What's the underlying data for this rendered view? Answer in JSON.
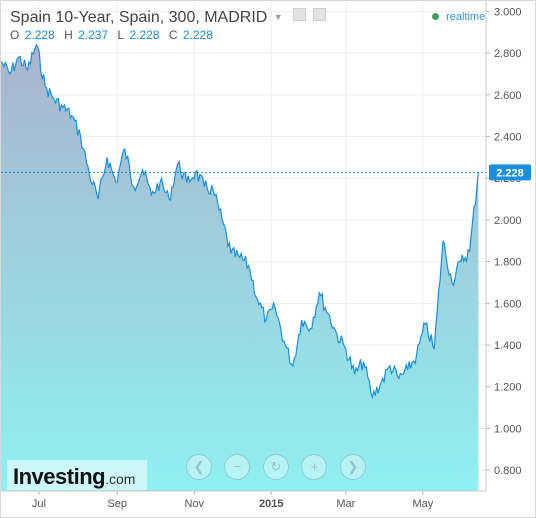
{
  "header": {
    "title": "Spain 10-Year, Spain, 300, MADRID",
    "realtime_label": "realtime"
  },
  "ohlc": {
    "open_label": "O",
    "open": "2.228",
    "high_label": "H",
    "high": "2.237",
    "low_label": "L",
    "low": "2.228",
    "close_label": "C",
    "close": "2.228"
  },
  "logo": {
    "name": "Investing",
    "suffix": ".com"
  },
  "nav": {
    "back_icon": "chevron-left-icon",
    "zoom_out_icon": "minus-icon",
    "reset_icon": "refresh-icon",
    "zoom_in_icon": "plus-icon",
    "forward_icon": "chevron-right-icon"
  },
  "colors": {
    "line": "#1a8fe0",
    "area_top": "#aab4cc",
    "area_bottom": "#8ff0f2",
    "price_tag": "#1a8fe0"
  },
  "chart_data": {
    "type": "area",
    "title": "Spain 10-Year",
    "xlabel": "",
    "ylabel": "",
    "ylim": [
      0.7,
      3.05
    ],
    "yticks": [
      3.0,
      2.8,
      2.6,
      2.4,
      2.2,
      2.0,
      1.8,
      1.6,
      1.4,
      1.2,
      1.0,
      0.8
    ],
    "ytick_labels": [
      "3.000",
      "2.800",
      "2.600",
      "2.400",
      "2.200",
      "2.000",
      "1.800",
      "1.600",
      "1.400",
      "1.200",
      "1.000",
      "0.800"
    ],
    "xlim": [
      "2014-06-01",
      "2015-06-20"
    ],
    "xticks": [
      "2014-07-01",
      "2014-09-01",
      "2014-11-01",
      "2015-01-01",
      "2015-03-01",
      "2015-05-01"
    ],
    "xtick_labels": [
      "Jul",
      "Sep",
      "Nov",
      "2015",
      "Mar",
      "May"
    ],
    "grid": true,
    "last_value": 2.228,
    "last_value_label": "2.228",
    "series": [
      {
        "x": [
          "2014-06-01",
          "2014-06-08",
          "2014-06-15",
          "2014-06-22",
          "2014-06-29",
          "2014-07-06",
          "2014-07-13",
          "2014-07-20",
          "2014-07-27",
          "2014-08-03",
          "2014-08-10",
          "2014-08-17",
          "2014-08-24",
          "2014-08-31",
          "2014-09-07",
          "2014-09-14",
          "2014-09-21",
          "2014-09-28",
          "2014-10-05",
          "2014-10-12",
          "2014-10-19",
          "2014-10-26",
          "2014-11-02",
          "2014-11-09",
          "2014-11-16",
          "2014-11-23",
          "2014-11-30",
          "2014-12-07",
          "2014-12-14",
          "2014-12-21",
          "2014-12-28",
          "2015-01-04",
          "2015-01-11",
          "2015-01-18",
          "2015-01-25",
          "2015-02-01",
          "2015-02-08",
          "2015-02-15",
          "2015-02-22",
          "2015-03-01",
          "2015-03-08",
          "2015-03-15",
          "2015-03-22",
          "2015-03-29",
          "2015-04-05",
          "2015-04-12",
          "2015-04-19",
          "2015-04-26",
          "2015-05-03",
          "2015-05-10",
          "2015-05-17",
          "2015-05-24",
          "2015-05-31",
          "2015-06-07",
          "2015-06-14"
        ],
        "values": [
          2.76,
          2.7,
          2.78,
          2.72,
          2.84,
          2.64,
          2.58,
          2.54,
          2.5,
          2.4,
          2.22,
          2.1,
          2.3,
          2.18,
          2.34,
          2.16,
          2.24,
          2.12,
          2.18,
          2.1,
          2.27,
          2.18,
          2.23,
          2.16,
          2.14,
          2.0,
          1.84,
          1.82,
          1.78,
          1.62,
          1.52,
          1.58,
          1.42,
          1.3,
          1.52,
          1.48,
          1.65,
          1.55,
          1.45,
          1.38,
          1.26,
          1.32,
          1.15,
          1.22,
          1.3,
          1.24,
          1.28,
          1.35,
          1.5,
          1.38,
          1.9,
          1.7,
          1.8,
          1.85,
          2.23
        ]
      }
    ]
  }
}
